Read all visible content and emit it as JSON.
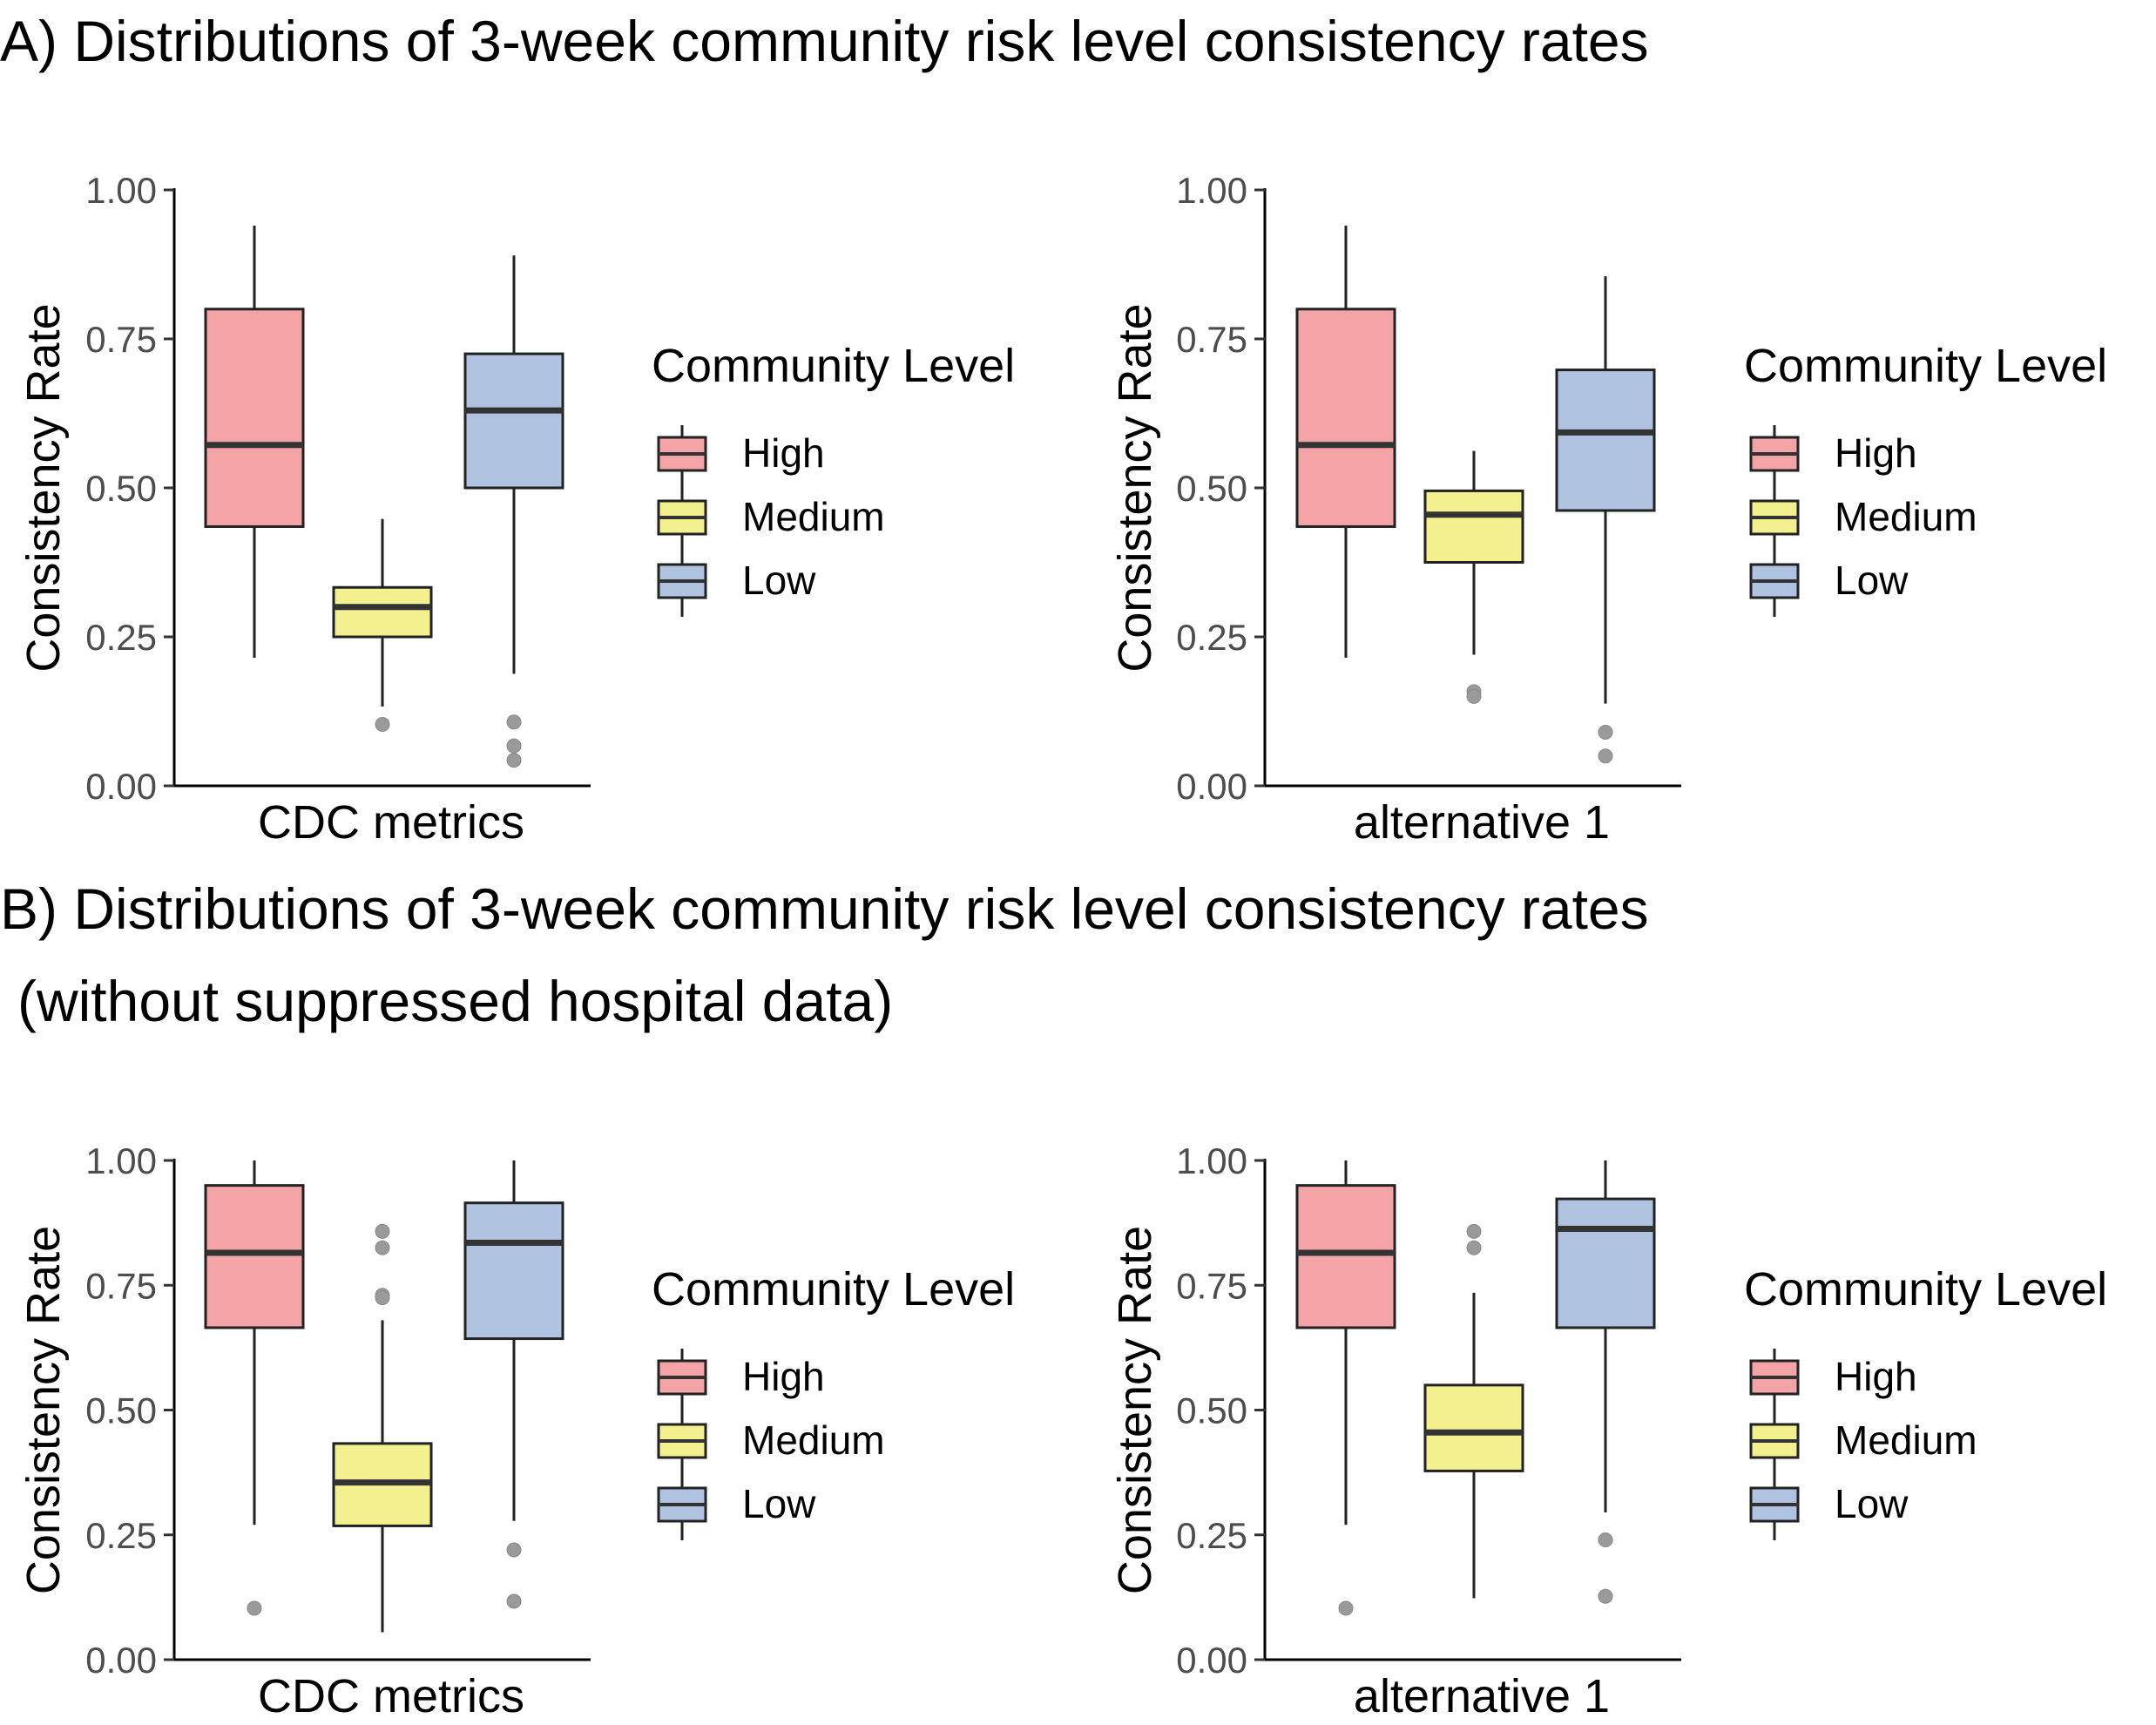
{
  "titles": {
    "a": "A) Distributions of 3-week community risk level consistency rates",
    "b_line1": "B) Distributions of 3-week community risk level consistency rates",
    "b_line2": "(without suppressed hospital data)"
  },
  "colors": {
    "High": "#f4a3a6",
    "Medium": "#f2f08f",
    "Low": "#afc3e1",
    "outlier": "#9a9a9a",
    "line": "#222222"
  },
  "chart_data": [
    {
      "type": "box",
      "panel": "A",
      "category": "CDC metrics",
      "ylabel": "Consistency Rate",
      "ylim": [
        0,
        1
      ],
      "yticks": [
        "0.00",
        "0.25",
        "0.50",
        "0.75",
        "1.00"
      ],
      "legend": {
        "title": "Community Level",
        "entries": [
          "High",
          "Medium",
          "Low"
        ],
        "placement": "right"
      },
      "boxes": [
        {
          "name": "High",
          "whisker_low": 0.215,
          "q1": 0.435,
          "median": 0.572,
          "q3": 0.8,
          "whisker_high": 0.94,
          "outliers": []
        },
        {
          "name": "Medium",
          "whisker_low": 0.133,
          "q1": 0.25,
          "median": 0.3,
          "q3": 0.333,
          "whisker_high": 0.448,
          "outliers": [
            0.103
          ]
        },
        {
          "name": "Low",
          "whisker_low": 0.188,
          "q1": 0.5,
          "median": 0.63,
          "q3": 0.725,
          "whisker_high": 0.89,
          "outliers": [
            0.107,
            0.067,
            0.043
          ]
        }
      ]
    },
    {
      "type": "box",
      "panel": "A",
      "category": "alternative 1",
      "ylabel": "Consistency Rate",
      "ylim": [
        0,
        1
      ],
      "yticks": [
        "0.00",
        "0.25",
        "0.50",
        "0.75",
        "1.00"
      ],
      "legend": {
        "title": "Community Level",
        "entries": [
          "High",
          "Medium",
          "Low"
        ],
        "placement": "right"
      },
      "boxes": [
        {
          "name": "High",
          "whisker_low": 0.215,
          "q1": 0.435,
          "median": 0.572,
          "q3": 0.8,
          "whisker_high": 0.94,
          "outliers": []
        },
        {
          "name": "Medium",
          "whisker_low": 0.22,
          "q1": 0.375,
          "median": 0.455,
          "q3": 0.495,
          "whisker_high": 0.562,
          "outliers": [
            0.158,
            0.15
          ]
        },
        {
          "name": "Low",
          "whisker_low": 0.138,
          "q1": 0.462,
          "median": 0.593,
          "q3": 0.698,
          "whisker_high": 0.855,
          "outliers": [
            0.09,
            0.05
          ]
        }
      ]
    },
    {
      "type": "box",
      "panel": "B",
      "category": "CDC metrics",
      "ylabel": "Consistency Rate",
      "ylim": [
        0,
        1
      ],
      "yticks": [
        "0.00",
        "0.25",
        "0.50",
        "0.75",
        "1.00"
      ],
      "legend": {
        "title": "Community Level",
        "entries": [
          "High",
          "Medium",
          "Low"
        ],
        "placement": "right"
      },
      "boxes": [
        {
          "name": "High",
          "whisker_low": 0.27,
          "q1": 0.665,
          "median": 0.815,
          "q3": 0.95,
          "whisker_high": 1.0,
          "outliers": [
            0.103
          ]
        },
        {
          "name": "Medium",
          "whisker_low": 0.055,
          "q1": 0.268,
          "median": 0.355,
          "q3": 0.433,
          "whisker_high": 0.68,
          "outliers": [
            0.858,
            0.825,
            0.73,
            0.725
          ]
        },
        {
          "name": "Low",
          "whisker_low": 0.278,
          "q1": 0.643,
          "median": 0.835,
          "q3": 0.915,
          "whisker_high": 1.0,
          "outliers": [
            0.22,
            0.117
          ]
        }
      ]
    },
    {
      "type": "box",
      "panel": "B",
      "category": "alternative 1",
      "ylabel": "Consistency Rate",
      "ylim": [
        0,
        1
      ],
      "yticks": [
        "0.00",
        "0.25",
        "0.50",
        "0.75",
        "1.00"
      ],
      "legend": {
        "title": "Community Level",
        "entries": [
          "High",
          "Medium",
          "Low"
        ],
        "placement": "right"
      },
      "boxes": [
        {
          "name": "High",
          "whisker_low": 0.27,
          "q1": 0.665,
          "median": 0.815,
          "q3": 0.95,
          "whisker_high": 1.0,
          "outliers": [
            0.103
          ]
        },
        {
          "name": "Medium",
          "whisker_low": 0.123,
          "q1": 0.378,
          "median": 0.455,
          "q3": 0.55,
          "whisker_high": 0.735,
          "outliers": [
            0.858,
            0.825
          ]
        },
        {
          "name": "Low",
          "whisker_low": 0.295,
          "q1": 0.665,
          "median": 0.863,
          "q3": 0.923,
          "whisker_high": 1.0,
          "outliers": [
            0.24,
            0.127
          ]
        }
      ]
    }
  ]
}
